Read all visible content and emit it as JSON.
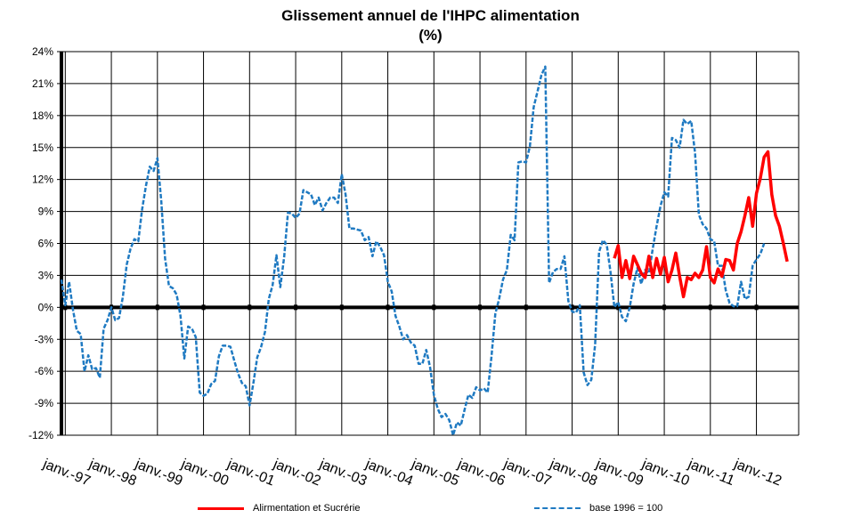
{
  "chart_data": {
    "type": "line",
    "title": "Glissement annuel de l'IHPC alimentation",
    "subtitle": "(%)",
    "xlabel": "",
    "ylabel": "",
    "ylim": [
      -12,
      24
    ],
    "y_ticks": [
      "-12%",
      "-9%",
      "-6%",
      "-3%",
      "0%",
      "3%",
      "6%",
      "9%",
      "12%",
      "15%",
      "18%",
      "21%",
      "24%"
    ],
    "x_ticks": [
      "janv.-97",
      "janv.-98",
      "janv.-99",
      "janv.-00",
      "janv.-01",
      "janv.-02",
      "janv.-03",
      "janv.-04",
      "janv.-05",
      "janv.-06",
      "janv.-07",
      "janv.-08",
      "janv.-09",
      "janv.-10",
      "janv.-11",
      "janv.-12"
    ],
    "xlim": [
      "1996-12",
      "2012-12"
    ],
    "grid": true,
    "legend_position": "bottom",
    "series": [
      {
        "name": "Alirmentation et Sucrérie",
        "color": "#ff0000",
        "style": "solid",
        "start": "2008-12",
        "values": [
          4.6,
          5.8,
          2.8,
          4.4,
          2.7,
          4.8,
          4.0,
          3.2,
          2.8,
          4.8,
          2.8,
          4.6,
          3.1,
          4.7,
          2.4,
          3.5,
          5.1,
          2.9,
          1.0,
          2.8,
          2.6,
          3.2,
          2.8,
          3.5,
          5.7,
          2.8,
          2.3,
          3.6,
          2.9,
          4.5,
          4.4,
          3.5,
          6.0,
          7.1,
          8.6,
          10.3,
          7.6,
          10.7,
          12.1,
          14.1,
          14.6,
          10.6,
          8.6,
          7.6,
          6.0,
          4.3
        ]
      },
      {
        "name": "base 1996 = 100",
        "color": "#1f7ac2",
        "style": "dashed",
        "start": "1996-12",
        "values": [
          2.6,
          0.2,
          2.4,
          -0.2,
          -2.2,
          -2.5,
          -6.0,
          -4.5,
          -5.8,
          -5.7,
          -6.6,
          -2.0,
          -1.2,
          0.0,
          -1.2,
          -1.0,
          1.0,
          4.0,
          5.5,
          6.4,
          6.2,
          9.2,
          11.4,
          13.2,
          12.8,
          14.0,
          10.0,
          4.6,
          2.0,
          1.8,
          1.2,
          -0.8,
          -4.8,
          -1.8,
          -2.0,
          -2.8,
          -8.0,
          -8.3,
          -8.1,
          -7.2,
          -6.9,
          -4.6,
          -3.6,
          -3.6,
          -3.7,
          -5.0,
          -6.2,
          -7.1,
          -7.4,
          -9.2,
          -7.1,
          -4.7,
          -3.7,
          -2.3,
          0.8,
          2.1,
          4.9,
          1.9,
          4.7,
          8.9,
          8.8,
          8.4,
          8.8,
          11.0,
          10.8,
          10.6,
          9.6,
          10.3,
          9.1,
          9.8,
          10.3,
          10.3,
          9.8,
          12.5,
          10.6,
          7.4,
          7.4,
          7.3,
          7.2,
          6.3,
          6.6,
          4.8,
          6.2,
          5.7,
          4.9,
          2.4,
          1.5,
          -0.8,
          -1.8,
          -3.0,
          -2.6,
          -3.3,
          -3.6,
          -5.3,
          -5.3,
          -4.0,
          -5.6,
          -8.2,
          -9.5,
          -10.3,
          -10.0,
          -10.6,
          -12.0,
          -10.8,
          -11.1,
          -9.6,
          -8.2,
          -8.5,
          -7.5,
          -7.8,
          -7.6,
          -8.0,
          -4.6,
          -0.6,
          0.8,
          2.6,
          3.5,
          6.8,
          6.3,
          13.6,
          13.7,
          13.6,
          15.1,
          18.8,
          20.3,
          21.8,
          22.6,
          2.3,
          3.3,
          3.6,
          3.6,
          4.8,
          0.6,
          -0.4,
          -0.5,
          0.2,
          -6.1,
          -7.3,
          -6.8,
          -3.5,
          5.2,
          6.3,
          5.9,
          3.3,
          0.0,
          0.5,
          -0.9,
          -1.3,
          0.0,
          2.2,
          3.7,
          2.2,
          3.5,
          3.2,
          5.5,
          7.6,
          9.5,
          10.8,
          10.4,
          15.9,
          15.7,
          15.0,
          17.6,
          17.2,
          17.5,
          14.5,
          8.7,
          7.8,
          7.4,
          6.4,
          6.2,
          3.9,
          3.9,
          1.6,
          0.4,
          0.1,
          0.1,
          2.4,
          0.8,
          1.0,
          3.9,
          4.5,
          5.0,
          6.0
        ]
      }
    ]
  }
}
